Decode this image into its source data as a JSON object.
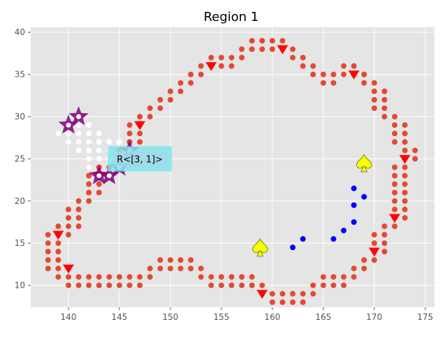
{
  "chart_data": {
    "type": "scatter",
    "title": "Region 1",
    "xlabel": "",
    "ylabel": "",
    "xlim": [
      136.3,
      175.9
    ],
    "ylim": [
      7.4,
      40.6
    ],
    "xticks": [
      140,
      145,
      150,
      155,
      160,
      165,
      170,
      175
    ],
    "yticks": [
      10,
      15,
      20,
      25,
      30,
      35,
      40
    ],
    "grid": true,
    "background": "#E5E5E5",
    "annotation": {
      "text": "R<[3, 1]>",
      "x": 147,
      "y": 25
    },
    "colors": {
      "boundary": "#E24A33",
      "triangle": "#FF0000",
      "interior": "#FFFFFF",
      "blue": "#0000FF",
      "star": "#800080",
      "spade": "#FFFF00",
      "annotation_box": "#7FE5EE"
    },
    "boundary_points": [
      [
        138,
        16
      ],
      [
        138,
        15
      ],
      [
        138,
        14
      ],
      [
        138,
        13
      ],
      [
        138,
        12
      ],
      [
        139,
        17
      ],
      [
        139,
        16
      ],
      [
        139,
        15
      ],
      [
        139,
        14
      ],
      [
        139,
        13
      ],
      [
        139,
        12
      ],
      [
        139,
        11
      ],
      [
        140,
        19
      ],
      [
        140,
        18
      ],
      [
        140,
        17
      ],
      [
        140,
        16
      ],
      [
        140,
        12
      ],
      [
        140,
        11
      ],
      [
        140,
        10
      ],
      [
        141,
        20
      ],
      [
        141,
        19
      ],
      [
        141,
        18
      ],
      [
        141,
        17
      ],
      [
        141,
        11
      ],
      [
        141,
        10
      ],
      [
        142,
        23
      ],
      [
        142,
        22
      ],
      [
        142,
        21
      ],
      [
        142,
        20
      ],
      [
        142,
        11
      ],
      [
        142,
        10
      ],
      [
        143,
        24
      ],
      [
        143,
        23
      ],
      [
        143,
        22
      ],
      [
        143,
        21
      ],
      [
        143,
        11
      ],
      [
        143,
        10
      ],
      [
        144,
        24
      ],
      [
        144,
        23
      ],
      [
        144,
        11
      ],
      [
        144,
        10
      ],
      [
        145,
        26
      ],
      [
        145,
        11
      ],
      [
        145,
        10
      ],
      [
        146,
        29
      ],
      [
        146,
        28
      ],
      [
        146,
        27
      ],
      [
        146,
        26
      ],
      [
        146,
        11
      ],
      [
        146,
        10
      ],
      [
        147,
        30
      ],
      [
        147,
        29
      ],
      [
        147,
        28
      ],
      [
        147,
        27
      ],
      [
        147,
        11
      ],
      [
        147,
        10
      ],
      [
        148,
        31
      ],
      [
        148,
        30
      ],
      [
        148,
        12
      ],
      [
        148,
        11
      ],
      [
        149,
        32
      ],
      [
        149,
        31
      ],
      [
        149,
        13
      ],
      [
        149,
        12
      ],
      [
        150,
        33
      ],
      [
        150,
        32
      ],
      [
        150,
        13
      ],
      [
        150,
        12
      ],
      [
        151,
        34
      ],
      [
        151,
        33
      ],
      [
        151,
        13
      ],
      [
        151,
        12
      ],
      [
        152,
        35
      ],
      [
        152,
        34
      ],
      [
        152,
        13
      ],
      [
        152,
        12
      ],
      [
        153,
        36
      ],
      [
        153,
        35
      ],
      [
        153,
        12
      ],
      [
        153,
        11
      ],
      [
        154,
        37
      ],
      [
        154,
        36
      ],
      [
        154,
        11
      ],
      [
        154,
        10
      ],
      [
        155,
        37
      ],
      [
        155,
        36
      ],
      [
        155,
        11
      ],
      [
        155,
        10
      ],
      [
        156,
        37
      ],
      [
        156,
        36
      ],
      [
        156,
        11
      ],
      [
        156,
        10
      ],
      [
        157,
        38
      ],
      [
        157,
        37
      ],
      [
        157,
        11
      ],
      [
        157,
        10
      ],
      [
        158,
        39
      ],
      [
        158,
        38
      ],
      [
        158,
        11
      ],
      [
        158,
        10
      ],
      [
        159,
        39
      ],
      [
        159,
        38
      ],
      [
        159,
        10
      ],
      [
        159,
        9
      ],
      [
        160,
        39
      ],
      [
        160,
        38
      ],
      [
        160,
        9
      ],
      [
        160,
        8
      ],
      [
        161,
        39
      ],
      [
        161,
        38
      ],
      [
        161,
        9
      ],
      [
        161,
        8
      ],
      [
        162,
        38
      ],
      [
        162,
        37
      ],
      [
        162,
        9
      ],
      [
        162,
        8
      ],
      [
        163,
        37
      ],
      [
        163,
        36
      ],
      [
        163,
        9
      ],
      [
        163,
        8
      ],
      [
        164,
        36
      ],
      [
        164,
        35
      ],
      [
        164,
        10
      ],
      [
        164,
        9
      ],
      [
        165,
        35
      ],
      [
        165,
        34
      ],
      [
        165,
        11
      ],
      [
        165,
        10
      ],
      [
        166,
        35
      ],
      [
        166,
        34
      ],
      [
        166,
        11
      ],
      [
        166,
        10
      ],
      [
        167,
        36
      ],
      [
        167,
        35
      ],
      [
        167,
        11
      ],
      [
        167,
        10
      ],
      [
        168,
        36
      ],
      [
        168,
        35
      ],
      [
        168,
        12
      ],
      [
        168,
        11
      ],
      [
        169,
        35
      ],
      [
        169,
        34
      ],
      [
        169,
        13
      ],
      [
        169,
        12
      ],
      [
        170,
        34
      ],
      [
        170,
        33
      ],
      [
        170,
        32
      ],
      [
        170,
        31
      ],
      [
        170,
        16
      ],
      [
        170,
        15
      ],
      [
        170,
        14
      ],
      [
        170,
        13
      ],
      [
        171,
        33
      ],
      [
        171,
        32
      ],
      [
        171,
        31
      ],
      [
        171,
        30
      ],
      [
        171,
        17
      ],
      [
        171,
        16
      ],
      [
        171,
        15
      ],
      [
        171,
        14
      ],
      [
        172,
        30
      ],
      [
        172,
        29
      ],
      [
        172,
        28
      ],
      [
        172,
        27
      ],
      [
        172,
        24
      ],
      [
        172,
        23
      ],
      [
        172,
        22
      ],
      [
        172,
        21
      ],
      [
        172,
        20
      ],
      [
        172,
        19
      ],
      [
        172,
        18
      ],
      [
        172,
        17
      ],
      [
        173,
        29
      ],
      [
        173,
        28
      ],
      [
        173,
        27
      ],
      [
        173,
        26
      ],
      [
        173,
        25
      ],
      [
        173,
        24
      ],
      [
        173,
        23
      ],
      [
        173,
        22
      ],
      [
        173,
        21
      ],
      [
        173,
        20
      ],
      [
        173,
        19
      ],
      [
        173,
        18
      ],
      [
        174,
        26
      ],
      [
        174,
        25
      ]
    ],
    "triangles": [
      [
        139,
        16
      ],
      [
        140,
        12
      ],
      [
        143,
        23
      ],
      [
        147,
        29
      ],
      [
        154,
        36
      ],
      [
        159,
        9
      ],
      [
        161,
        38
      ],
      [
        168,
        35
      ],
      [
        170,
        14
      ],
      [
        172,
        18
      ],
      [
        173,
        25
      ]
    ],
    "interior_points": [
      [
        139,
        28
      ],
      [
        140,
        29
      ],
      [
        140,
        28
      ],
      [
        140,
        27
      ],
      [
        141,
        29
      ],
      [
        141,
        28
      ],
      [
        141,
        27
      ],
      [
        141,
        26
      ],
      [
        142,
        29
      ],
      [
        142,
        28
      ],
      [
        142,
        27
      ],
      [
        142,
        26
      ],
      [
        142,
        25
      ],
      [
        142,
        24
      ],
      [
        143,
        28
      ],
      [
        143,
        27
      ],
      [
        143,
        26
      ],
      [
        143,
        25
      ],
      [
        143,
        24
      ],
      [
        144,
        27
      ],
      [
        144,
        26
      ],
      [
        144,
        25
      ],
      [
        145,
        27
      ],
      [
        145,
        26
      ],
      [
        145,
        25
      ],
      [
        145,
        24
      ]
    ],
    "blue_points": [
      [
        162,
        14.5
      ],
      [
        163,
        15.5
      ],
      [
        166,
        15.5
      ],
      [
        167,
        16.5
      ],
      [
        168,
        17.5
      ],
      [
        168,
        19.5
      ],
      [
        168,
        21.5
      ],
      [
        169,
        20.5
      ]
    ],
    "stars": [
      [
        140,
        29
      ],
      [
        141,
        30
      ],
      [
        143,
        23
      ],
      [
        144,
        23
      ],
      [
        145,
        24
      ],
      [
        146,
        25
      ],
      [
        146,
        26
      ]
    ],
    "spades": [
      [
        158.8,
        14.5
      ],
      [
        169,
        24.5
      ]
    ]
  }
}
